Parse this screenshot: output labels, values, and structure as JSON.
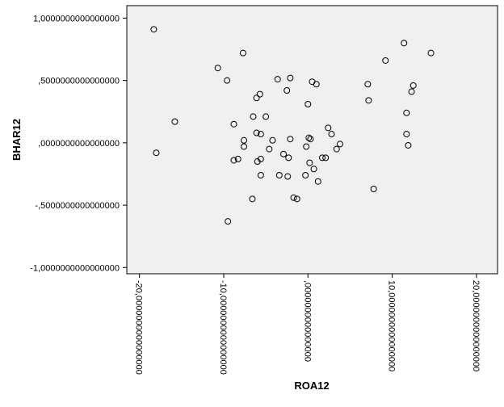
{
  "chart_data": {
    "type": "scatter",
    "xlabel": "ROA12",
    "ylabel": "BHAR12",
    "xlim": [
      -21.5,
      22.5
    ],
    "ylim": [
      -1.05,
      1.1
    ],
    "x_ticks": [
      -20,
      -10,
      0,
      10,
      20
    ],
    "y_ticks": [
      -1.0,
      -0.5,
      0.0,
      0.5,
      1.0
    ],
    "x_tick_labels": [
      "-20,0000000000000000",
      "-10,0000000000000000",
      ",0000000000000000",
      "10,0000000000000000",
      "20,0000000000000000"
    ],
    "y_tick_labels": [
      "-1,0000000000000000",
      "-,5000000000000000",
      ",0000000000000000",
      ",5000000000000000",
      "1,0000000000000000"
    ],
    "grid": false,
    "plot_background": "#f0f0f0",
    "marker": "hollow-circle",
    "marker_color": "#000000",
    "series": [
      {
        "points": [
          [
            -18.3,
            0.91
          ],
          [
            -18.0,
            -0.08
          ],
          [
            -15.8,
            0.17
          ],
          [
            -10.7,
            0.6
          ],
          [
            -9.6,
            0.5
          ],
          [
            -9.5,
            -0.63
          ],
          [
            -8.8,
            0.15
          ],
          [
            -8.8,
            -0.14
          ],
          [
            -8.3,
            -0.13
          ],
          [
            -7.7,
            0.72
          ],
          [
            -7.6,
            0.02
          ],
          [
            -7.6,
            -0.03
          ],
          [
            -6.6,
            -0.45
          ],
          [
            -6.5,
            0.21
          ],
          [
            -6.1,
            0.36
          ],
          [
            -6.1,
            0.08
          ],
          [
            -6.0,
            -0.15
          ],
          [
            -5.7,
            0.39
          ],
          [
            -5.6,
            0.07
          ],
          [
            -5.6,
            -0.13
          ],
          [
            -5.6,
            -0.26
          ],
          [
            -5.0,
            0.21
          ],
          [
            -4.6,
            -0.05
          ],
          [
            -4.2,
            0.02
          ],
          [
            -3.6,
            0.51
          ],
          [
            -3.4,
            -0.26
          ],
          [
            -2.9,
            -0.09
          ],
          [
            -2.5,
            0.42
          ],
          [
            -2.4,
            -0.27
          ],
          [
            -2.3,
            -0.12
          ],
          [
            -2.1,
            0.52
          ],
          [
            -2.1,
            0.03
          ],
          [
            -1.7,
            -0.44
          ],
          [
            -1.3,
            -0.45
          ],
          [
            -0.3,
            -0.26
          ],
          [
            -0.2,
            -0.03
          ],
          [
            0.0,
            0.31
          ],
          [
            0.1,
            0.04
          ],
          [
            0.2,
            -0.16
          ],
          [
            0.3,
            0.03
          ],
          [
            0.5,
            0.49
          ],
          [
            0.7,
            -0.21
          ],
          [
            1.0,
            0.47
          ],
          [
            1.2,
            -0.31
          ],
          [
            1.7,
            -0.12
          ],
          [
            2.1,
            -0.12
          ],
          [
            2.4,
            0.12
          ],
          [
            2.8,
            0.07
          ],
          [
            3.4,
            -0.05
          ],
          [
            3.8,
            -0.01
          ],
          [
            7.1,
            0.47
          ],
          [
            7.2,
            0.34
          ],
          [
            7.8,
            -0.37
          ],
          [
            9.2,
            0.66
          ],
          [
            11.4,
            0.8
          ],
          [
            11.7,
            0.24
          ],
          [
            11.7,
            0.07
          ],
          [
            11.9,
            -0.02
          ],
          [
            12.3,
            0.41
          ],
          [
            12.5,
            0.46
          ],
          [
            14.6,
            0.72
          ]
        ]
      }
    ]
  }
}
